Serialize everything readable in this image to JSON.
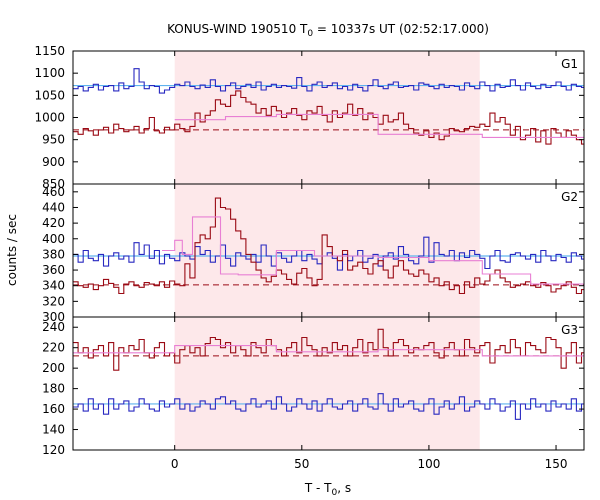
{
  "chart_data": {
    "type": "line",
    "title_main": "KONUS-WIND 190510 T",
    "title_sub": "0",
    "title_rest": " = 10337s UT (02:52:17.000)",
    "xlabel_main": "T - T",
    "xlabel_sub": "0",
    "xlabel_rest": ", s",
    "ylabel": "counts / sec",
    "xlim": [
      -40,
      161
    ],
    "xticks": [
      "0",
      "50",
      "100",
      "150"
    ],
    "xtick_values": [
      0,
      50,
      100,
      150
    ],
    "shade_interval": [
      0,
      120
    ],
    "colors": {
      "shade": "#fde8ea",
      "blue": "#2828c0",
      "red": "#9a0a14",
      "light_blue": "#5fb3ee",
      "pink": "#e87fd4"
    },
    "panels": [
      {
        "label": "G1",
        "ylim": [
          850,
          1150
        ],
        "yticks": [
          "850",
          "900",
          "950",
          "1000",
          "1050",
          "1100",
          "1150"
        ],
        "ytick_values": [
          850,
          900,
          950,
          1000,
          1050,
          1100,
          1150
        ],
        "background_levels": {
          "blue": 1072,
          "red": 972
        },
        "series": [
          {
            "color_key": "blue",
            "x_start": -40,
            "step": 2,
            "values": [
              1065,
              1070,
              1060,
              1068,
              1075,
              1062,
              1070,
              1072,
              1060,
              1078,
              1065,
              1070,
              1110,
              1080,
              1065,
              1072,
              1070,
              1055,
              1062,
              1068,
              1075,
              1072,
              1080,
              1070,
              1065,
              1073,
              1068,
              1085,
              1070,
              1060,
              1072,
              1078,
              1065,
              1070,
              1075,
              1068,
              1080,
              1062,
              1070,
              1075,
              1068,
              1072,
              1070,
              1066,
              1090,
              1070,
              1060,
              1075,
              1080,
              1068,
              1072,
              1078,
              1065,
              1070,
              1062,
              1075,
              1068,
              1060,
              1072,
              1085,
              1070,
              1065,
              1075,
              1080,
              1068,
              1070,
              1072,
              1062,
              1078,
              1075,
              1070,
              1065,
              1075,
              1068,
              1072,
              1070,
              1062,
              1078,
              1070,
              1065,
              1080,
              1072,
              1060,
              1075,
              1068,
              1070,
              1085,
              1072,
              1062,
              1078,
              1070,
              1065,
              1075,
              1068,
              1072,
              1080,
              1070,
              1062,
              1075,
              1070,
              1068
            ]
          },
          {
            "color_key": "red",
            "x_start": -40,
            "step": 2,
            "values": [
              968,
              962,
              975,
              970,
              960,
              972,
              978,
              965,
              985,
              975,
              968,
              972,
              980,
              965,
              975,
              1000,
              970,
              965,
              978,
              972,
              985,
              975,
              968,
              980,
              1010,
              990,
              1005,
              1015,
              1040,
              1030,
              1025,
              1050,
              1060,
              1045,
              1035,
              1030,
              1010,
              1020,
              1005,
              1025,
              1015,
              1000,
              1010,
              1020,
              1005,
              995,
              1015,
              1010,
              1025,
              1005,
              990,
              1015,
              1000,
              1010,
              1030,
              1005,
              1020,
              995,
              1010,
              1000,
              985,
              1005,
              990,
              995,
              1010,
              985,
              975,
              965,
              960,
              970,
              955,
              965,
              950,
              958,
              975,
              970,
              968,
              975,
              980,
              978,
              985,
              980,
              1010,
              990,
              1000,
              985,
              960,
              980,
              950,
              960,
              975,
              945,
              970,
              940,
              975,
              965,
              955,
              970,
              960,
              950,
              940
            ]
          },
          {
            "color_key": "pink",
            "steps": [
              [
                0,
                995
              ],
              [
                20,
                1002
              ],
              [
                40,
                1007
              ],
              [
                80,
                962
              ],
              [
                121,
                955
              ],
              [
                161,
                955
              ]
            ]
          }
        ]
      },
      {
        "label": "G2",
        "ylim": [
          300,
          470
        ],
        "yticks": [
          "300",
          "320",
          "340",
          "360",
          "380",
          "400",
          "420",
          "440",
          "460"
        ],
        "ytick_values": [
          300,
          320,
          340,
          360,
          380,
          400,
          420,
          440,
          460
        ],
        "background_levels": {
          "blue": 378,
          "red": 341
        },
        "series": [
          {
            "color_key": "blue",
            "x_start": -40,
            "step": 2,
            "values": [
              380,
              370,
              385,
              375,
              372,
              380,
              365,
              378,
              382,
              374,
              378,
              370,
              395,
              380,
              392,
              375,
              385,
              368,
              380,
              375,
              372,
              382,
              378,
              374,
              390,
              380,
              385,
              370,
              378,
              392,
              375,
              365,
              382,
              378,
              374,
              380,
              370,
              392,
              378,
              365,
              382,
              375,
              370,
              378,
              385,
              372,
              380,
              374,
              368,
              378,
              382,
              375,
              360,
              380,
              372,
              378,
              385,
              370,
              375,
              380,
              365,
              378,
              382,
              374,
              390,
              380,
              372,
              368,
              378,
              402,
              370,
              395,
              380,
              378,
              385,
              372,
              382,
              376,
              385,
              380,
              375,
              362,
              378,
              385,
              372,
              370,
              380,
              382,
              378,
              374,
              380,
              370,
              385,
              378,
              372,
              380,
              376,
              370,
              382,
              378,
              374
            ]
          },
          {
            "color_key": "red",
            "x_start": -40,
            "step": 2,
            "values": [
              345,
              340,
              338,
              342,
              335,
              340,
              348,
              343,
              338,
              330,
              342,
              345,
              340,
              338,
              344,
              342,
              340,
              345,
              338,
              346,
              342,
              340,
              368,
              350,
              395,
              405,
              400,
              415,
              452,
              440,
              438,
              425,
              410,
              400,
              380,
              370,
              360,
              350,
              345,
              352,
              360,
              355,
              348,
              342,
              356,
              362,
              350,
              340,
              348,
              405,
              390,
              378,
              372,
              385,
              360,
              365,
              370,
              362,
              355,
              368,
              372,
              360,
              350,
              365,
              372,
              360,
              355,
              352,
              360,
              355,
              345,
              350,
              340,
              345,
              335,
              340,
              330,
              345,
              338,
              350,
              342,
              346,
              355,
              360,
              350,
              345,
              338,
              340,
              342,
              345,
              340,
              338,
              344,
              340,
              332,
              336,
              340,
              345,
              338,
              330,
              335
            ]
          },
          {
            "color_key": "pink",
            "steps": [
              [
                -5,
                385
              ],
              [
                0,
                398
              ],
              [
                3,
                380
              ],
              [
                7,
                428
              ],
              [
                18,
                355
              ],
              [
                25,
                354
              ],
              [
                40,
                385
              ],
              [
                55,
                378
              ],
              [
                80,
                376
              ],
              [
                100,
                372
              ],
              [
                121,
                355
              ],
              [
                140,
                342
              ],
              [
                161,
                342
              ]
            ]
          }
        ]
      },
      {
        "label": "G3",
        "ylim": [
          120,
          250
        ],
        "yticks": [
          "120",
          "140",
          "160",
          "180",
          "200",
          "220",
          "240"
        ],
        "ytick_values": [
          120,
          140,
          160,
          180,
          200,
          220,
          240
        ],
        "background_levels": {
          "blue": 165,
          "red": 212
        },
        "series": [
          {
            "color_key": "red",
            "x_start": -40,
            "step": 2,
            "values": [
              225,
              215,
              220,
              210,
              218,
              222,
              212,
              225,
              198,
              220,
              215,
              222,
              218,
              228,
              215,
              210,
              220,
              225,
              212,
              215,
              205,
              218,
              222,
              215,
              220,
              212,
              224,
              230,
              228,
              220,
              225,
              215,
              222,
              218,
              212,
              225,
              220,
              215,
              228,
              222,
              218,
              212,
              220,
              225,
              215,
              230,
              222,
              218,
              212,
              220,
              215,
              225,
              218,
              222,
              212,
              220,
              228,
              215,
              225,
              218,
              238,
              220,
              212,
              225,
              228,
              222,
              215,
              220,
              218,
              222,
              225,
              215,
              210,
              220,
              225,
              218,
              212,
              228,
              220,
              215,
              222,
              225,
              205,
              218,
              222,
              215,
              228,
              220,
              212,
              225,
              222,
              218,
              215,
              230,
              228,
              220,
              200,
              215,
              225,
              205,
              215
            ]
          },
          {
            "color_key": "blue",
            "x_start": -40,
            "step": 2,
            "values": [
              162,
              165,
              158,
              170,
              160,
              165,
              155,
              170,
              160,
              165,
              168,
              158,
              162,
              170,
              165,
              160,
              158,
              168,
              162,
              165,
              170,
              160,
              165,
              158,
              162,
              168,
              165,
              160,
              170,
              172,
              165,
              168,
              160,
              158,
              165,
              170,
              162,
              165,
              168,
              160,
              172,
              165,
              158,
              162,
              170,
              165,
              160,
              168,
              158,
              165,
              170,
              162,
              160,
              165,
              168,
              158,
              165,
              170,
              162,
              160,
              175,
              165,
              158,
              170,
              162,
              165,
              168,
              160,
              158,
              165,
              170,
              155,
              162,
              168,
              160,
              165,
              172,
              158,
              162,
              168,
              165,
              160,
              170,
              165,
              158,
              162,
              168,
              150,
              165,
              160,
              170,
              162,
              165,
              158,
              168,
              162,
              165,
              160,
              170,
              158,
              165
            ]
          },
          {
            "color_key": "pink",
            "steps": [
              [
                -40,
                215
              ],
              [
                0,
                222
              ],
              [
                40,
                216
              ],
              [
                80,
                218
              ],
              [
                121,
                212
              ],
              [
                161,
                212
              ]
            ]
          }
        ]
      }
    ]
  }
}
